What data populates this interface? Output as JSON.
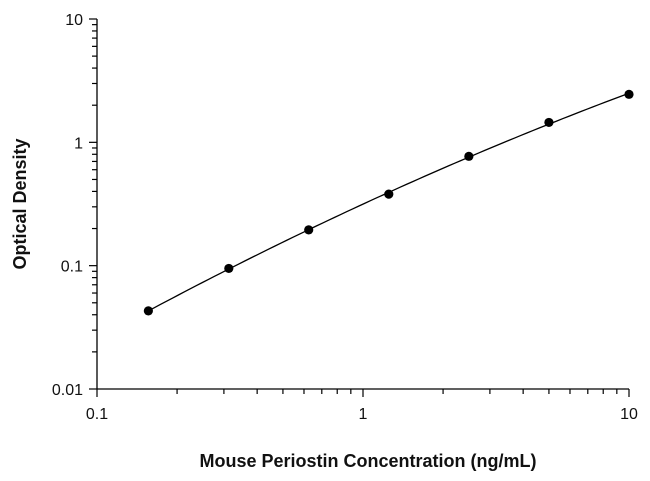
{
  "chart_data": {
    "type": "scatter",
    "title": "",
    "xlabel": "Mouse Periostin Concentration (ng/mL)",
    "ylabel": "Optical Density",
    "x_scale": "log",
    "y_scale": "log",
    "xlim": [
      0.1,
      10
    ],
    "ylim": [
      0.01,
      10
    ],
    "x_tick_labels": [
      "0.1",
      "1",
      "10"
    ],
    "y_tick_labels": [
      "0.01",
      "0.1",
      "1",
      "10"
    ],
    "grid": false,
    "legend": "none",
    "series": [
      {
        "x": [
          0.156,
          0.313,
          0.625,
          1.25,
          2.5,
          5,
          10
        ],
        "y": [
          0.043,
          0.095,
          0.195,
          0.38,
          0.77,
          1.45,
          2.45
        ]
      }
    ],
    "fit_curve": true,
    "colors": {
      "points": "#000000",
      "line": "#000000"
    }
  }
}
